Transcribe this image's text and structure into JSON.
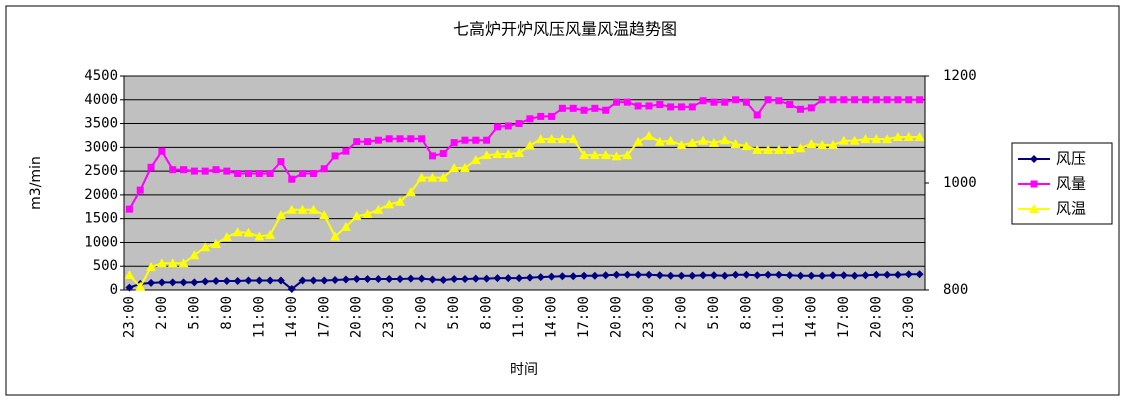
{
  "chart_data": {
    "type": "line",
    "title": "七高炉开炉风压风量风温趋势图",
    "x_label": "时间",
    "y_label": "m3/min",
    "categories": [
      "23:00",
      null,
      null,
      "2:00",
      null,
      null,
      "5:00",
      null,
      null,
      "8:00",
      null,
      null,
      "11:00",
      null,
      null,
      "14:00",
      null,
      null,
      "17:00",
      null,
      null,
      "20:00",
      null,
      null,
      "23:00",
      null,
      null,
      "2:00",
      null,
      null,
      "5:00",
      null,
      null,
      "8:00",
      null,
      null,
      "11:00",
      null,
      null,
      "14:00",
      null,
      null,
      "17:00",
      null,
      null,
      "20:00",
      null,
      null,
      "23:00",
      null,
      null,
      "2:00",
      null,
      null,
      "5:00",
      null,
      null,
      "8:00",
      null,
      null,
      "11:00",
      null,
      null,
      "14:00",
      null,
      null,
      "17:00",
      null,
      null,
      "20:00",
      null,
      null,
      "23:00",
      null
    ],
    "ylim": [
      0,
      4500
    ],
    "yticks": [
      0,
      500,
      1000,
      1500,
      2000,
      2500,
      3000,
      3500,
      4000,
      4500
    ],
    "y2lim": [
      800,
      1200
    ],
    "y2ticks": [
      800,
      1000,
      1200
    ],
    "grid": true,
    "legend": "right",
    "series": [
      {
        "name": "风压",
        "color": "#000080",
        "marker": "diamond",
        "values": [
          50,
          130,
          150,
          160,
          160,
          160,
          160,
          180,
          190,
          190,
          190,
          200,
          200,
          200,
          200,
          20,
          200,
          200,
          200,
          210,
          220,
          230,
          230,
          230,
          230,
          230,
          240,
          240,
          220,
          210,
          230,
          230,
          240,
          240,
          250,
          250,
          250,
          260,
          270,
          280,
          290,
          290,
          300,
          300,
          310,
          320,
          320,
          320,
          320,
          310,
          300,
          300,
          300,
          310,
          310,
          300,
          320,
          320,
          310,
          320,
          320,
          310,
          300,
          300,
          300,
          310,
          310,
          300,
          310,
          320,
          320,
          320,
          330,
          330
        ]
      },
      {
        "name": "风量",
        "color": "#ff00ff",
        "marker": "square",
        "values": [
          1700,
          2100,
          2580,
          2920,
          2530,
          2530,
          2500,
          2500,
          2530,
          2500,
          2450,
          2450,
          2450,
          2450,
          2700,
          2330,
          2450,
          2450,
          2550,
          2820,
          2920,
          3120,
          3120,
          3150,
          3180,
          3180,
          3180,
          3180,
          2820,
          2870,
          3100,
          3150,
          3150,
          3150,
          3430,
          3450,
          3500,
          3600,
          3650,
          3650,
          3820,
          3820,
          3780,
          3820,
          3780,
          3950,
          3950,
          3870,
          3870,
          3900,
          3850,
          3850,
          3850,
          3980,
          3950,
          3950,
          4000,
          3950,
          3680,
          4000,
          3980,
          3900,
          3800,
          3830,
          4000,
          4000,
          4000,
          4000,
          4000,
          4000,
          4000,
          4000,
          4000,
          4000
        ]
      },
      {
        "name": "风温",
        "color": "#ffff00",
        "marker": "triangle",
        "axis": "y2",
        "values": [
          828,
          806,
          843,
          850,
          850,
          850,
          865,
          880,
          886,
          899,
          908,
          907,
          900,
          903,
          940,
          950,
          950,
          950,
          940,
          900,
          918,
          938,
          942,
          950,
          960,
          965,
          983,
          1010,
          1010,
          1010,
          1028,
          1028,
          1043,
          1052,
          1054,
          1054,
          1056,
          1070,
          1082,
          1082,
          1082,
          1082,
          1052,
          1052,
          1052,
          1050,
          1052,
          1077,
          1088,
          1077,
          1079,
          1071,
          1075,
          1079,
          1075,
          1080,
          1073,
          1069,
          1062,
          1062,
          1062,
          1062,
          1065,
          1073,
          1071,
          1071,
          1079,
          1079,
          1082,
          1082,
          1082,
          1086,
          1086,
          1086
        ]
      }
    ]
  }
}
